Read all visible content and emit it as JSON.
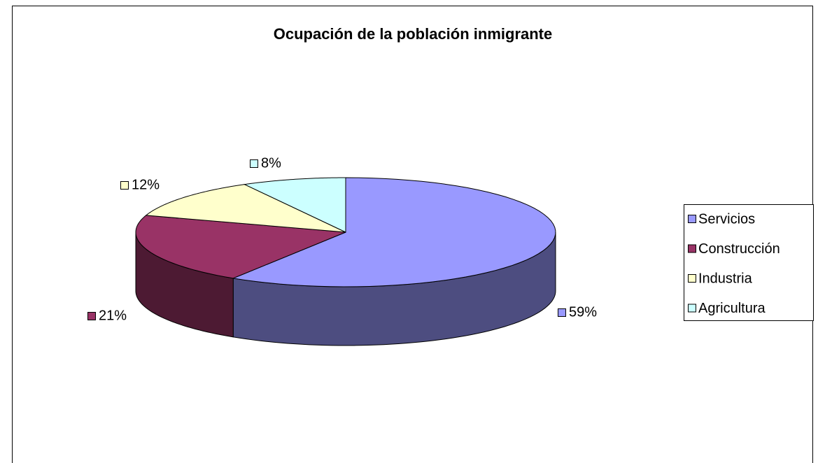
{
  "chart_data": {
    "type": "pie",
    "title": "Ocupación de la población inmigrante",
    "categories": [
      "Servicios",
      "Construcción",
      "Industria",
      "Agricultura"
    ],
    "values": [
      59,
      21,
      12,
      8
    ],
    "value_labels": [
      "59%",
      "21%",
      "12%",
      "8%"
    ],
    "colors": [
      "#9999ff",
      "#993366",
      "#ffffcc",
      "#ccffff"
    ],
    "legend": "right"
  }
}
